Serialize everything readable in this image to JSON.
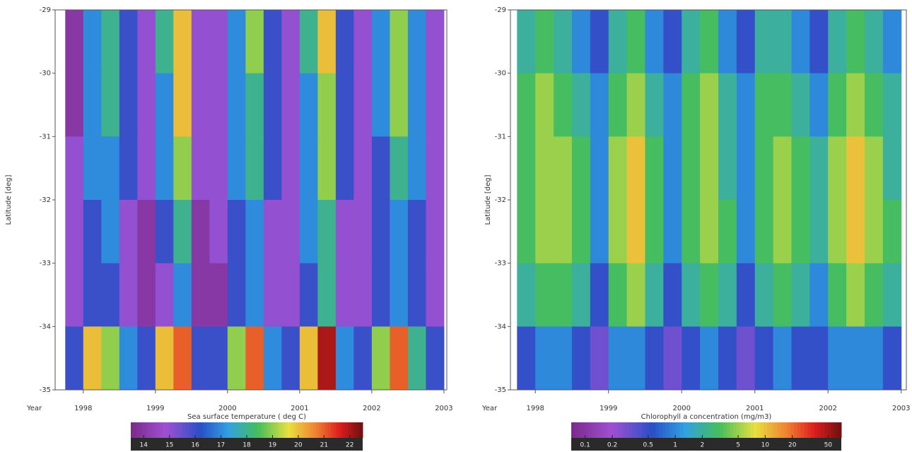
{
  "chart_data": [
    {
      "type": "heatmap",
      "xlabel": "Sea surface temperature ( deg C)",
      "ylabel": "Latitude [deg]",
      "x_name": "Year",
      "xlim": [
        1997.61,
        2003.04
      ],
      "xticks": [
        1998,
        1999,
        2000,
        2001,
        2002,
        2003
      ],
      "ylim": [
        -35,
        -29
      ],
      "yticks": [
        -29,
        -30,
        -31,
        -32,
        -33,
        -34,
        -35
      ],
      "x": [
        1997.875,
        1998.125,
        1998.375,
        1998.625,
        1998.875,
        1999.125,
        1999.375,
        1999.625,
        1999.875,
        2000.125,
        2000.375,
        2000.625,
        2000.875,
        2001.125,
        2001.375,
        2001.625,
        2001.875,
        2002.125,
        2002.375,
        2002.625,
        2002.875
      ],
      "y": [
        -29.5,
        -30.5,
        -31.5,
        -32.5,
        -33.5,
        -34.5
      ],
      "values": [
        [
          14,
          17,
          18,
          16,
          15,
          18,
          20,
          15,
          15,
          17,
          19,
          16,
          15,
          18,
          20,
          16,
          15,
          17,
          19,
          17,
          15
        ],
        [
          14,
          17,
          18,
          16,
          15,
          17,
          20,
          15,
          15,
          17,
          18,
          16,
          15,
          17,
          19,
          16,
          15,
          17,
          19,
          17,
          15
        ],
        [
          15,
          17,
          17,
          16,
          15,
          17,
          19,
          15,
          15,
          17,
          18,
          16,
          15,
          17,
          19,
          16,
          15,
          16,
          18,
          17,
          15
        ],
        [
          15,
          16,
          17,
          15,
          14,
          16,
          18,
          14,
          15,
          16,
          17,
          15,
          15,
          17,
          18,
          15,
          15,
          16,
          17,
          16,
          15
        ],
        [
          15,
          16,
          16,
          15,
          14,
          15,
          17,
          14,
          14,
          16,
          17,
          15,
          15,
          16,
          18,
          15,
          15,
          16,
          17,
          16,
          15
        ],
        [
          16,
          20,
          19,
          17,
          16,
          20,
          21,
          16,
          16,
          19,
          21,
          17,
          16,
          20,
          22,
          17,
          16,
          19,
          21,
          18,
          16
        ]
      ],
      "clim": [
        13.5,
        22.5
      ],
      "log_color": false,
      "cbar_ticks": [
        14,
        15,
        16,
        17,
        18,
        19,
        20,
        21,
        22
      ]
    },
    {
      "type": "heatmap",
      "xlabel": "Chlorophyll a concentration (mg/m3)",
      "ylabel": "Latitude [deg]",
      "x_name": "Year",
      "xlim": [
        1997.66,
        2003.07
      ],
      "xticks": [
        1998,
        1999,
        2000,
        2001,
        2002,
        2003
      ],
      "ylim": [
        -35,
        -29
      ],
      "yticks": [
        -29,
        -30,
        -31,
        -32,
        -33,
        -34,
        -35
      ],
      "x": [
        1997.875,
        1998.125,
        1998.375,
        1998.625,
        1998.875,
        1999.125,
        1999.375,
        1999.625,
        1999.875,
        2000.125,
        2000.375,
        2000.625,
        2000.875,
        2001.125,
        2001.375,
        2001.625,
        2001.875,
        2002.125,
        2002.375,
        2002.625,
        2002.875
      ],
      "y": [
        -29.5,
        -30.5,
        -31.5,
        -32.5,
        -33.5,
        -34.5
      ],
      "values": [
        [
          2,
          3,
          2,
          1,
          0.5,
          2,
          3,
          1,
          0.5,
          2,
          3,
          1,
          0.5,
          2,
          2,
          1,
          0.5,
          2,
          3,
          2,
          1
        ],
        [
          3,
          5,
          3,
          2,
          1,
          3,
          5,
          2,
          1,
          3,
          5,
          2,
          1,
          3,
          3,
          2,
          1,
          3,
          5,
          3,
          2
        ],
        [
          3,
          5,
          5,
          3,
          1,
          5,
          10,
          3,
          1,
          3,
          5,
          2,
          1,
          3,
          5,
          3,
          2,
          5,
          10,
          5,
          2
        ],
        [
          3,
          5,
          5,
          3,
          1,
          5,
          10,
          3,
          1,
          3,
          5,
          3,
          1,
          3,
          5,
          3,
          2,
          5,
          10,
          5,
          3
        ],
        [
          2,
          3,
          3,
          2,
          0.5,
          3,
          5,
          2,
          0.5,
          2,
          3,
          2,
          0.5,
          2,
          3,
          2,
          1,
          3,
          5,
          3,
          2
        ],
        [
          0.5,
          1,
          1,
          0.5,
          0.3,
          1,
          1,
          0.5,
          0.3,
          0.5,
          1,
          0.5,
          0.3,
          0.5,
          1,
          0.5,
          0.5,
          1,
          1,
          1,
          0.5
        ]
      ],
      "clim": [
        0.07,
        70
      ],
      "log_color": true,
      "cbar_ticks": [
        0.1,
        0.2,
        0.5,
        1,
        2,
        5,
        10,
        20,
        50
      ]
    }
  ]
}
